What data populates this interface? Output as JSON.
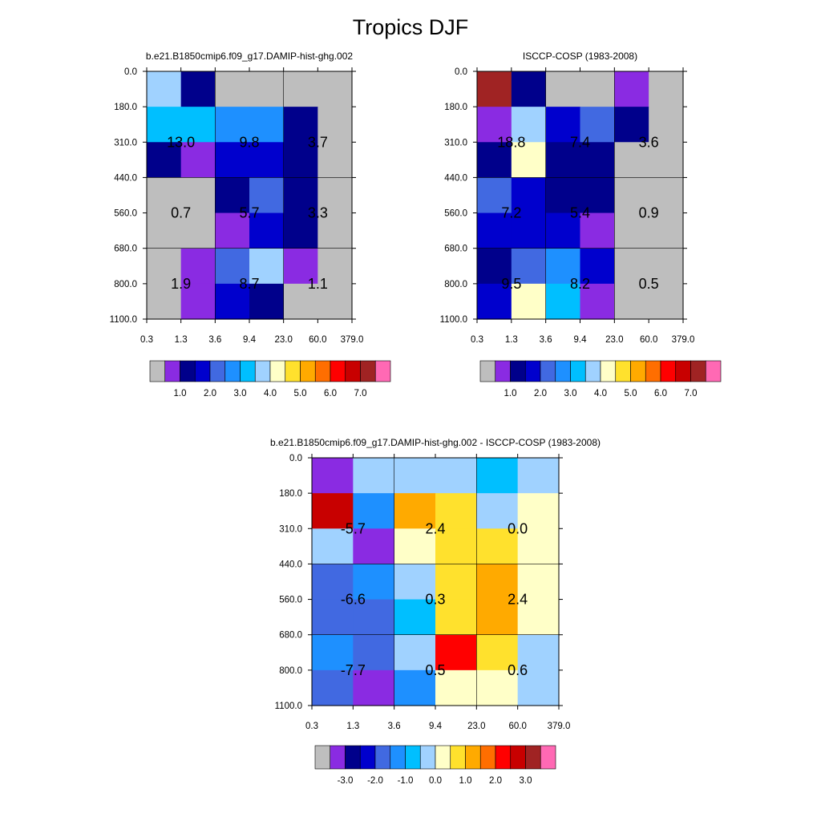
{
  "main_title": "Tropics DJF",
  "colors": {
    "empty": "#bebebe",
    "seq_scale": [
      "#bebebe",
      "#8a2be2",
      "#00008b",
      "#0000cd",
      "#4169e1",
      "#1e90ff",
      "#00bfff",
      "#a0d2ff",
      "#ffffc8",
      "#ffe12d",
      "#ffaa00",
      "#ff6e00",
      "#ff0000",
      "#c80000",
      "#a02323",
      "#ff69b4"
    ],
    "diff_scale": [
      "#bebebe",
      "#8a2be2",
      "#00008b",
      "#0000cd",
      "#4169e1",
      "#1e90ff",
      "#00bfff",
      "#a0d2ff",
      "#ffffc8",
      "#ffe12d",
      "#ffaa00",
      "#ff6e00",
      "#ff0000",
      "#c80000",
      "#a02323",
      "#ff69b4"
    ]
  },
  "chart_data": [
    {
      "type": "heatmap",
      "title": "b.e21.B1850cmip6.f09_g17.DAMIP-hist-ghg.002",
      "xticks": [
        "0.3",
        "1.3",
        "3.6",
        "9.4",
        "23.0",
        "60.0",
        "379.0"
      ],
      "yticks": [
        "0.0",
        "180.0",
        "310.0",
        "440.0",
        "560.0",
        "680.0",
        "800.0",
        "1100.0"
      ],
      "cells": [
        [
          7,
          2,
          0,
          0,
          0,
          0
        ],
        [
          6,
          6,
          5,
          5,
          2,
          0
        ],
        [
          2,
          1,
          3,
          3,
          2,
          0
        ],
        [
          0,
          0,
          2,
          4,
          2,
          0
        ],
        [
          0,
          0,
          1,
          3,
          2,
          0
        ],
        [
          0,
          1,
          4,
          7,
          1,
          0
        ],
        [
          0,
          1,
          3,
          2,
          0,
          0
        ]
      ],
      "blocks": [
        {
          "value": "13.0",
          "x_block": 0,
          "y_block": 0
        },
        {
          "value": "9.8",
          "x_block": 1,
          "y_block": 0
        },
        {
          "value": "3.7",
          "x_block": 2,
          "y_block": 0
        },
        {
          "value": "0.7",
          "x_block": 0,
          "y_block": 1
        },
        {
          "value": "5.7",
          "x_block": 1,
          "y_block": 1
        },
        {
          "value": "3.3",
          "x_block": 2,
          "y_block": 1
        },
        {
          "value": "1.9",
          "x_block": 0,
          "y_block": 2
        },
        {
          "value": "8.7",
          "x_block": 1,
          "y_block": 2
        },
        {
          "value": "1.1",
          "x_block": 2,
          "y_block": 2
        }
      ],
      "colorbar_labels": [
        "1.0",
        "2.0",
        "3.0",
        "4.0",
        "5.0",
        "6.0",
        "7.0"
      ]
    },
    {
      "type": "heatmap",
      "title": "ISCCP-COSP (1983-2008)",
      "xticks": [
        "0.3",
        "1.3",
        "3.6",
        "9.4",
        "23.0",
        "60.0",
        "379.0"
      ],
      "yticks": [
        "0.0",
        "180.0",
        "310.0",
        "440.0",
        "560.0",
        "680.0",
        "800.0",
        "1100.0"
      ],
      "cells": [
        [
          14,
          2,
          0,
          0,
          1,
          0
        ],
        [
          1,
          7,
          3,
          4,
          2,
          0
        ],
        [
          2,
          8,
          2,
          2,
          0,
          0
        ],
        [
          4,
          3,
          2,
          2,
          0,
          0
        ],
        [
          3,
          3,
          3,
          1,
          0,
          0
        ],
        [
          2,
          4,
          5,
          3,
          0,
          0
        ],
        [
          3,
          8,
          6,
          1,
          0,
          0
        ]
      ],
      "blocks": [
        {
          "value": "18.8",
          "x_block": 0,
          "y_block": 0
        },
        {
          "value": "7.4",
          "x_block": 1,
          "y_block": 0
        },
        {
          "value": "3.6",
          "x_block": 2,
          "y_block": 0
        },
        {
          "value": "7.2",
          "x_block": 0,
          "y_block": 1
        },
        {
          "value": "5.4",
          "x_block": 1,
          "y_block": 1
        },
        {
          "value": "0.9",
          "x_block": 2,
          "y_block": 1
        },
        {
          "value": "9.5",
          "x_block": 0,
          "y_block": 2
        },
        {
          "value": "8.2",
          "x_block": 1,
          "y_block": 2
        },
        {
          "value": "0.5",
          "x_block": 2,
          "y_block": 2
        }
      ],
      "colorbar_labels": [
        "1.0",
        "2.0",
        "3.0",
        "4.0",
        "5.0",
        "6.0",
        "7.0"
      ]
    },
    {
      "type": "heatmap",
      "title": "b.e21.B1850cmip6.f09_g17.DAMIP-hist-ghg.002 - ISCCP-COSP (1983-2008)",
      "xticks": [
        "0.3",
        "1.3",
        "3.6",
        "9.4",
        "23.0",
        "60.0",
        "379.0"
      ],
      "yticks": [
        "0.0",
        "180.0",
        "310.0",
        "440.0",
        "560.0",
        "680.0",
        "800.0",
        "1100.0"
      ],
      "cells": [
        [
          1,
          7,
          7,
          7,
          6,
          7
        ],
        [
          13,
          5,
          10,
          9,
          7,
          8
        ],
        [
          7,
          1,
          8,
          9,
          9,
          8
        ],
        [
          4,
          5,
          7,
          9,
          10,
          8
        ],
        [
          4,
          4,
          6,
          9,
          10,
          8
        ],
        [
          5,
          4,
          7,
          12,
          9,
          7
        ],
        [
          4,
          1,
          5,
          8,
          8,
          7
        ]
      ],
      "blocks": [
        {
          "value": "-5.7",
          "x_block": 0,
          "y_block": 0
        },
        {
          "value": "2.4",
          "x_block": 1,
          "y_block": 0
        },
        {
          "value": "0.0",
          "x_block": 2,
          "y_block": 0
        },
        {
          "value": "-6.6",
          "x_block": 0,
          "y_block": 1
        },
        {
          "value": "0.3",
          "x_block": 1,
          "y_block": 1
        },
        {
          "value": "2.4",
          "x_block": 2,
          "y_block": 1
        },
        {
          "value": "-7.7",
          "x_block": 0,
          "y_block": 2
        },
        {
          "value": "0.5",
          "x_block": 1,
          "y_block": 2
        },
        {
          "value": "0.6",
          "x_block": 2,
          "y_block": 2
        }
      ],
      "colorbar_labels": [
        "-3.0",
        "-2.0",
        "-1.0",
        "0.0",
        "1.0",
        "2.0",
        "3.0"
      ]
    }
  ]
}
